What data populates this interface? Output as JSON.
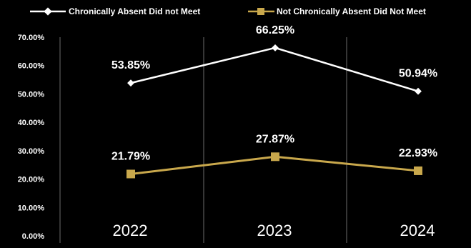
{
  "chart_data": {
    "type": "line",
    "categories": [
      "2022",
      "2023",
      "2024"
    ],
    "series": [
      {
        "name": "Chronically Absent Did not Meet",
        "values": [
          53.85,
          66.25,
          50.94
        ],
        "labels": [
          "53.85%",
          "66.25%",
          "50.94%"
        ],
        "color": "#ffffff",
        "marker": "diamond"
      },
      {
        "name": "Not Chronically Absent Did Not Meet",
        "values": [
          21.79,
          27.87,
          22.93
        ],
        "labels": [
          "21.79%",
          "27.87%",
          "22.93%"
        ],
        "color": "#c9a84c",
        "marker": "square"
      }
    ],
    "yticks": [
      "70.00%",
      "60.00%",
      "50.00%",
      "40.00%",
      "30.00%",
      "20.00%",
      "10.00%",
      "0.00%"
    ],
    "ylim": [
      0,
      70
    ],
    "legend_position": "top",
    "grid": "vertical category separators"
  },
  "colors": {
    "background": "#000000",
    "text": "#ffffff",
    "separator": "#5a5a5a"
  }
}
